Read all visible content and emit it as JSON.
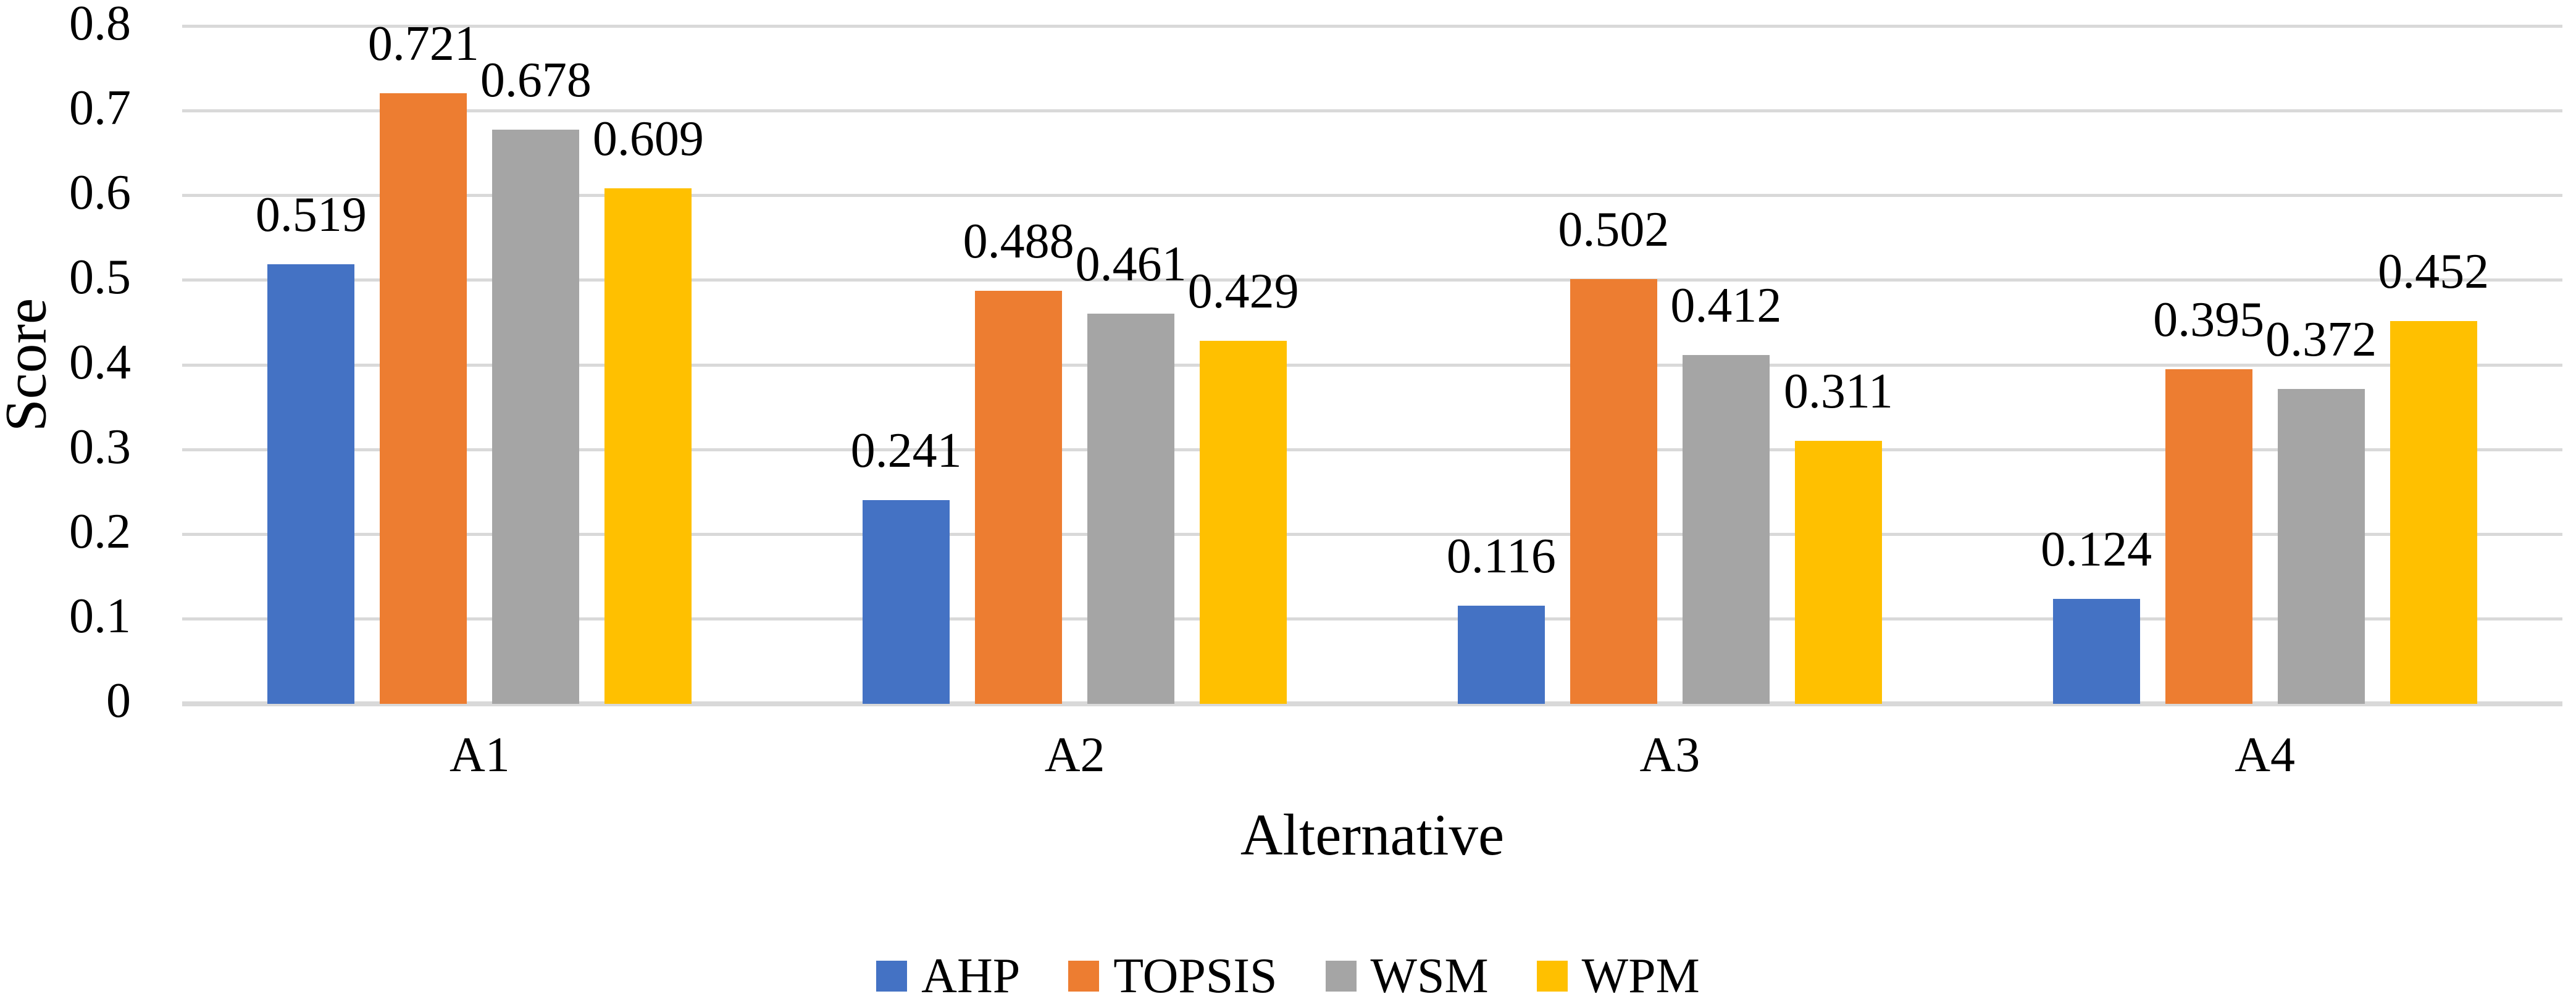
{
  "chart_data": {
    "type": "bar",
    "title": "",
    "xlabel": "Alternative",
    "ylabel": "Score",
    "categories": [
      "A1",
      "A2",
      "A3",
      "A4"
    ],
    "series": [
      {
        "name": "AHP",
        "color": "#4472C4",
        "values": [
          0.519,
          0.241,
          0.116,
          0.124
        ]
      },
      {
        "name": "TOPSIS",
        "color": "#ED7D31",
        "values": [
          0.721,
          0.488,
          0.502,
          0.395
        ]
      },
      {
        "name": "WSM",
        "color": "#A5A5A5",
        "values": [
          0.678,
          0.461,
          0.412,
          0.372
        ]
      },
      {
        "name": "WPM",
        "color": "#FFC000",
        "values": [
          0.609,
          0.429,
          0.311,
          0.452
        ]
      }
    ],
    "data_label_format": "0.000",
    "ylim": [
      0,
      0.8
    ],
    "y_ticks": [
      "0",
      "0.1",
      "0.2",
      "0.3",
      "0.4",
      "0.5",
      "0.6",
      "0.7",
      "0.8"
    ],
    "grid": "horizontal",
    "legend_position": "bottom",
    "colors": {
      "gridline": "#D9D9D9",
      "axis_line": "#D9D9D9",
      "text": "#000000",
      "background": "#FFFFFF"
    }
  }
}
